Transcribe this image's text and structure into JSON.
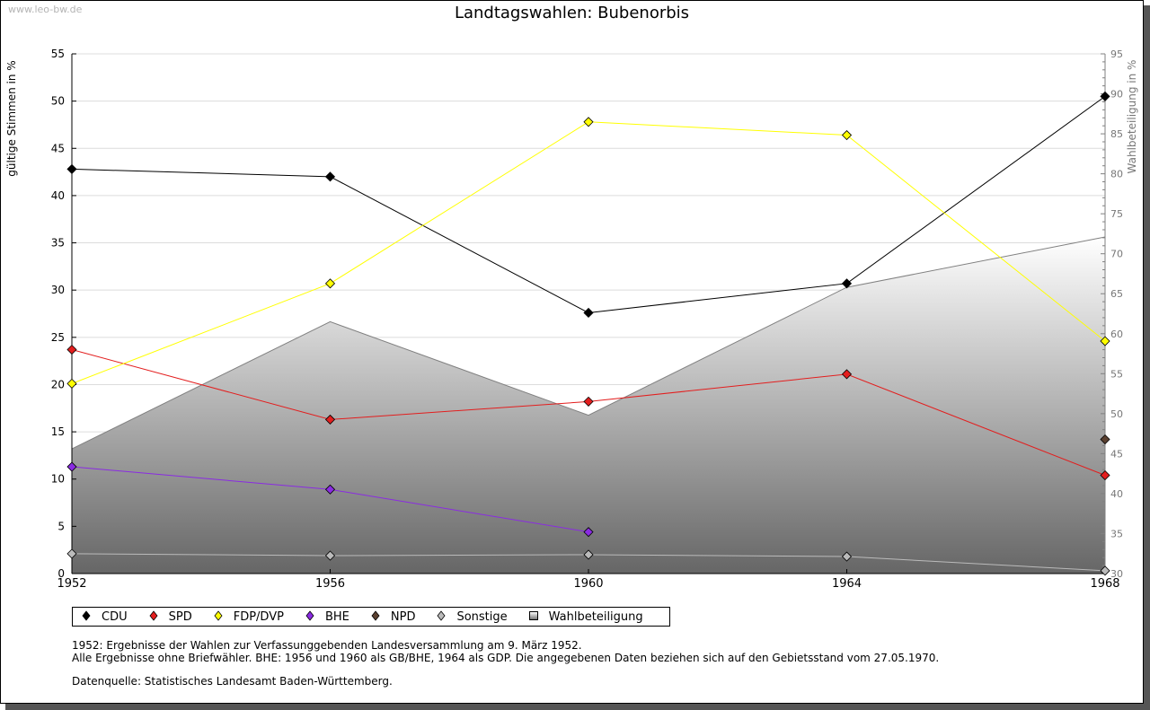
{
  "watermark": "www.leo-bw.de",
  "title": "Landtagswahlen: Bubenorbis",
  "chart_data": {
    "type": "line",
    "title": "Landtagswahlen: Bubenorbis",
    "xlabel": "",
    "ylabel": "gültige Stimmen in %",
    "y2label": "Wahlbeteiligung in %",
    "x": [
      1952,
      1956,
      1960,
      1964,
      1968
    ],
    "x_tick_labels": [
      "1952",
      "1956",
      "1960",
      "1964",
      "1968"
    ],
    "ylim": [
      0,
      55
    ],
    "y_ticks": [
      0,
      5,
      10,
      15,
      20,
      25,
      30,
      35,
      40,
      45,
      50,
      55
    ],
    "y2lim": [
      30,
      95
    ],
    "y2_ticks": [
      30,
      35,
      40,
      45,
      50,
      55,
      60,
      65,
      70,
      75,
      80,
      85,
      90,
      95
    ],
    "grid": true,
    "legend_position": "bottom",
    "series": [
      {
        "name": "CDU",
        "color": "#000000",
        "values": [
          42.8,
          42.0,
          27.6,
          30.7,
          50.5
        ]
      },
      {
        "name": "SPD",
        "color": "#e31e1e",
        "values": [
          23.7,
          16.3,
          18.2,
          21.1,
          10.4
        ]
      },
      {
        "name": "FDP/DVP",
        "color": "#ffff00",
        "values": [
          20.1,
          30.7,
          47.8,
          46.4,
          24.6
        ]
      },
      {
        "name": "BHE",
        "color": "#8a2be2",
        "values": [
          11.3,
          8.9,
          4.4,
          null,
          null
        ]
      },
      {
        "name": "NPD",
        "color": "#5a4030",
        "values": [
          null,
          null,
          null,
          null,
          14.2
        ]
      },
      {
        "name": "Sonstige",
        "color": "#bbbbbb",
        "values": [
          2.1,
          1.9,
          2.0,
          1.8,
          0.3
        ]
      }
    ],
    "area_series": {
      "name": "Wahlbeteiligung",
      "axis": "right",
      "values": [
        45.6,
        61.5,
        49.8,
        65.8,
        72.1
      ]
    }
  },
  "legend": [
    {
      "label": "CDU",
      "color": "#000000",
      "marker": "◆"
    },
    {
      "label": "SPD",
      "color": "#e31e1e",
      "marker": "◆"
    },
    {
      "label": "FDP/DVP",
      "color": "#ffff00",
      "marker": "◆"
    },
    {
      "label": "BHE",
      "color": "#8a2be2",
      "marker": "◆"
    },
    {
      "label": "NPD",
      "color": "#5a4030",
      "marker": "◆"
    },
    {
      "label": "Sonstige",
      "color": "#bbbbbb",
      "marker": "◆"
    },
    {
      "label": "Wahlbeteiligung",
      "color": "#999999",
      "marker": "■"
    }
  ],
  "notes": {
    "line1": "1952: Ergebnisse der Wahlen zur Verfassunggebenden Landesversammlung am 9. März 1952.",
    "line2": "Alle Ergebnisse ohne Briefwähler. BHE: 1956 und 1960 als GB/BHE, 1964 als GDP. Die angegebenen Daten beziehen sich auf den Gebietsstand vom 27.05.1970.",
    "line3": "Datenquelle: Statistisches Landesamt Baden-Württemberg."
  }
}
